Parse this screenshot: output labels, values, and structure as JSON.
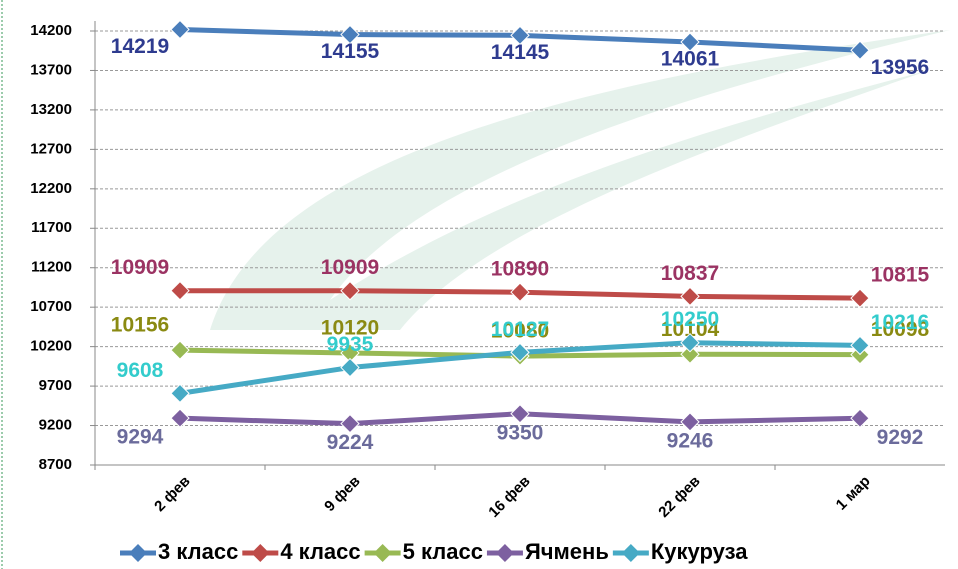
{
  "chart_data": {
    "type": "line",
    "categories": [
      "2 фев",
      "9 фев",
      "16 фев",
      "22 фев",
      "1 мар"
    ],
    "series": [
      {
        "name": "3 класс",
        "color": "#4a7ebb",
        "label_color": "#2e3b8f",
        "values": [
          14219,
          14155,
          14145,
          14061,
          13956
        ]
      },
      {
        "name": "4 класс",
        "color": "#be4b48",
        "label_color": "#9b3363",
        "values": [
          10909,
          10909,
          10890,
          10837,
          10815
        ]
      },
      {
        "name": "5 класс",
        "color": "#98b954",
        "label_color": "#8a8a12",
        "values": [
          10156,
          10120,
          10080,
          10104,
          10098
        ]
      },
      {
        "name": "Ячмень",
        "color": "#7d60a0",
        "label_color": "#6b6b9b",
        "values": [
          9294,
          9224,
          9350,
          9246,
          9292
        ]
      },
      {
        "name": "Кукуруза",
        "color": "#46aac5",
        "label_color": "#33cccc",
        "values": [
          9608,
          9935,
          10127,
          10250,
          10216
        ]
      }
    ],
    "ylim": [
      8700,
      14200
    ],
    "yticks": [
      8700,
      9200,
      9700,
      10200,
      10700,
      11200,
      11700,
      12200,
      12700,
      13200,
      13700,
      14200
    ],
    "grid": true,
    "legend": "bottom"
  }
}
